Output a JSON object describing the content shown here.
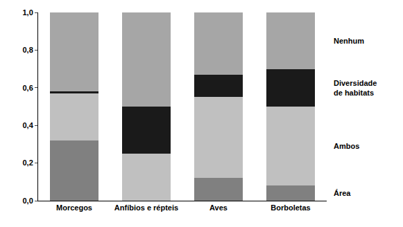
{
  "chart_data": {
    "type": "bar",
    "stacked": true,
    "categories": [
      "Morcegos",
      "Anfíbios e répteis",
      "Aves",
      "Borboletas"
    ],
    "series": [
      {
        "name": "Área",
        "color": "#808080",
        "values": [
          0.32,
          0,
          0.12,
          0.08
        ]
      },
      {
        "name": "Ambos",
        "color": "#c0c0c0",
        "values": [
          0.25,
          0.25,
          0.43,
          0.42
        ]
      },
      {
        "name": "Diversidade de habitats",
        "color": "#1a1a1a",
        "values": [
          0.01,
          0.25,
          0.12,
          0.2
        ]
      },
      {
        "name": "Nenhum",
        "color": "#a6a6a6",
        "values": [
          0.42,
          0.5,
          0.33,
          0.3
        ]
      }
    ],
    "ylim": [
      0,
      1
    ],
    "yticks": [
      {
        "value": 0,
        "label": "0,0"
      },
      {
        "value": 0.2,
        "label": "0,2"
      },
      {
        "value": 0.4,
        "label": "0,4"
      },
      {
        "value": 0.6,
        "label": "0,6"
      },
      {
        "value": 0.8,
        "label": "0,8"
      },
      {
        "value": 1,
        "label": "1,0"
      }
    ],
    "grid": false
  }
}
